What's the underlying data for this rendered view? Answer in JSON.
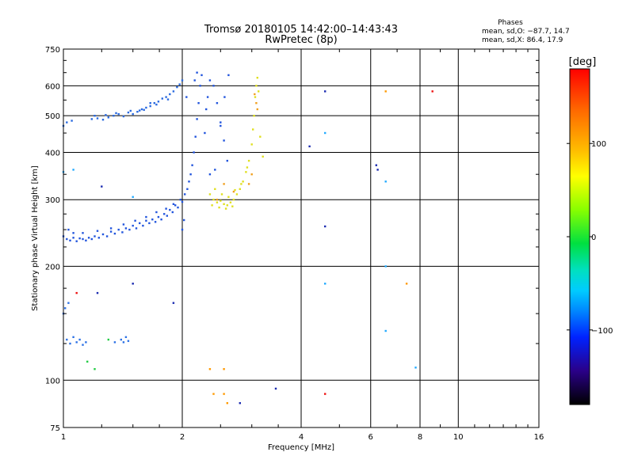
{
  "chart_data": {
    "type": "scatter",
    "title": "Tromsø 20180105 14:42:00–14:43:43",
    "subtitle": "RwPretec (8p)",
    "xlabel": "Frequency [MHz]",
    "ylabel": "Stationary phase Virtual Height [km]",
    "x_scale": "log",
    "y_scale": "log",
    "xlim": [
      1,
      16
    ],
    "ylim": [
      75,
      750
    ],
    "x_ticks": [
      1,
      2,
      4,
      6,
      8,
      10,
      16
    ],
    "x_tick_labels": [
      "1",
      "2",
      "4",
      "6",
      "8",
      "10",
      "16"
    ],
    "y_ticks": [
      75,
      100,
      200,
      300,
      400,
      500,
      600,
      750
    ],
    "y_tick_labels": [
      "75",
      "100",
      "200",
      "300",
      "400",
      "500",
      "600",
      "750"
    ],
    "grid": true,
    "phase_info": {
      "title": "Phases",
      "line1": "mean, sd,O: −87.7, 14.7",
      "line2": "mean, sd,X: 86.4, 17.9"
    },
    "colorbar": {
      "label": "[deg]",
      "range": [
        -180,
        180
      ],
      "ticks": [
        100,
        0,
        -100
      ],
      "tick_labels": [
        "100",
        "0",
        "−100"
      ]
    },
    "series": [
      {
        "mode": "O",
        "phase": -110,
        "color": "#2255dd",
        "points": [
          [
            1.0,
            240
          ],
          [
            1.02,
            236
          ],
          [
            1.04,
            234
          ],
          [
            1.06,
            238
          ],
          [
            1.08,
            233
          ],
          [
            1.1,
            237
          ],
          [
            1.12,
            236
          ],
          [
            1.14,
            234
          ],
          [
            1.16,
            238
          ],
          [
            1.18,
            236
          ],
          [
            1.2,
            240
          ],
          [
            1.23,
            238
          ],
          [
            1.26,
            243
          ],
          [
            1.29,
            240
          ],
          [
            1.32,
            247
          ],
          [
            1.35,
            244
          ],
          [
            1.38,
            250
          ],
          [
            1.41,
            246
          ],
          [
            1.44,
            252
          ],
          [
            1.47,
            250
          ],
          [
            1.5,
            256
          ],
          [
            1.53,
            252
          ],
          [
            1.56,
            260
          ],
          [
            1.59,
            256
          ],
          [
            1.62,
            264
          ],
          [
            1.65,
            260
          ],
          [
            1.68,
            266
          ],
          [
            1.71,
            262
          ],
          [
            1.74,
            270
          ],
          [
            1.77,
            266
          ],
          [
            1.8,
            275
          ],
          [
            1.83,
            272
          ],
          [
            1.86,
            282
          ],
          [
            1.89,
            278
          ],
          [
            1.92,
            290
          ],
          [
            1.95,
            286
          ],
          [
            1.98,
            300
          ],
          [
            2.0,
            296
          ],
          [
            2.03,
            310
          ],
          [
            2.06,
            320
          ],
          [
            2.08,
            335
          ],
          [
            2.1,
            350
          ],
          [
            2.12,
            370
          ],
          [
            2.14,
            400
          ],
          [
            2.16,
            440
          ],
          [
            2.18,
            490
          ],
          [
            2.2,
            540
          ],
          [
            2.22,
            600
          ],
          [
            2.24,
            640
          ],
          [
            2.0,
            250
          ],
          [
            2.02,
            265
          ],
          [
            1.03,
            250
          ],
          [
            1.06,
            245
          ],
          [
            1.12,
            245
          ],
          [
            1.22,
            248
          ],
          [
            1.32,
            252
          ],
          [
            1.42,
            258
          ],
          [
            1.52,
            264
          ],
          [
            1.62,
            270
          ],
          [
            1.72,
            278
          ],
          [
            1.82,
            284
          ],
          [
            1.9,
            292
          ],
          [
            2.28,
            450
          ],
          [
            2.3,
            520
          ],
          [
            2.32,
            560
          ],
          [
            2.35,
            620
          ],
          [
            2.4,
            600
          ],
          [
            2.45,
            540
          ],
          [
            2.5,
            480
          ],
          [
            2.55,
            430
          ],
          [
            2.6,
            380
          ],
          [
            2.35,
            350
          ],
          [
            2.42,
            360
          ],
          [
            2.5,
            470
          ],
          [
            2.56,
            560
          ],
          [
            2.62,
            640
          ],
          [
            2.15,
            620
          ],
          [
            2.18,
            650
          ],
          [
            2.05,
            560
          ]
        ]
      },
      {
        "mode": "O-upper",
        "phase": -105,
        "color": "#2a6ae0",
        "points": [
          [
            1.18,
            490
          ],
          [
            1.22,
            492
          ],
          [
            1.26,
            488
          ],
          [
            1.3,
            495
          ],
          [
            1.34,
            500
          ],
          [
            1.38,
            505
          ],
          [
            1.42,
            498
          ],
          [
            1.46,
            510
          ],
          [
            1.5,
            505
          ],
          [
            1.54,
            512
          ],
          [
            1.58,
            520
          ],
          [
            1.62,
            525
          ],
          [
            1.66,
            530
          ],
          [
            1.7,
            540
          ],
          [
            1.74,
            545
          ],
          [
            1.78,
            555
          ],
          [
            1.82,
            560
          ],
          [
            1.86,
            570
          ],
          [
            1.9,
            580
          ],
          [
            1.94,
            595
          ],
          [
            1.97,
            605
          ],
          [
            2.0,
            620
          ],
          [
            1.2,
            500
          ],
          [
            1.28,
            502
          ],
          [
            1.36,
            508
          ],
          [
            1.48,
            515
          ],
          [
            1.6,
            518
          ],
          [
            1.72,
            535
          ],
          [
            1.84,
            552
          ],
          [
            1.66,
            540
          ],
          [
            1.56,
            516
          ],
          [
            1.0,
            470
          ],
          [
            1.02,
            480
          ],
          [
            1.05,
            485
          ]
        ]
      },
      {
        "mode": "X",
        "phase": 95,
        "color": "#e0e020",
        "points": [
          [
            2.35,
            310
          ],
          [
            2.4,
            300
          ],
          [
            2.45,
            295
          ],
          [
            2.5,
            298
          ],
          [
            2.55,
            292
          ],
          [
            2.6,
            290
          ],
          [
            2.65,
            295
          ],
          [
            2.7,
            300
          ],
          [
            2.75,
            310
          ],
          [
            2.8,
            320
          ],
          [
            2.85,
            335
          ],
          [
            2.9,
            355
          ],
          [
            2.95,
            380
          ],
          [
            3.0,
            420
          ],
          [
            3.02,
            460
          ],
          [
            3.04,
            500
          ],
          [
            3.06,
            560
          ],
          [
            3.08,
            600
          ],
          [
            3.1,
            630
          ],
          [
            2.42,
            320
          ],
          [
            2.52,
            310
          ],
          [
            2.62,
            305
          ],
          [
            2.72,
            318
          ],
          [
            2.82,
            330
          ],
          [
            2.92,
            365
          ],
          [
            3.12,
            580
          ],
          [
            3.15,
            440
          ],
          [
            2.38,
            290
          ],
          [
            2.48,
            286
          ],
          [
            2.58,
            284
          ],
          [
            2.68,
            288
          ],
          [
            3.2,
            390
          ]
        ]
      },
      {
        "mode": "X-warm",
        "phase": 140,
        "color": "#f0a020",
        "points": [
          [
            3.05,
            570
          ],
          [
            3.08,
            540
          ],
          [
            3.1,
            520
          ],
          [
            2.95,
            330
          ],
          [
            3.0,
            350
          ],
          [
            2.7,
            315
          ],
          [
            2.55,
            330
          ],
          [
            2.45,
            300
          ]
        ]
      },
      {
        "mode": "low-layer",
        "phase": -100,
        "color": "#2d72e6",
        "points": [
          [
            1.02,
            128
          ],
          [
            1.04,
            125
          ],
          [
            1.06,
            130
          ],
          [
            1.08,
            126
          ],
          [
            1.1,
            128
          ],
          [
            1.12,
            124
          ],
          [
            1.14,
            126
          ],
          [
            1.4,
            128
          ],
          [
            1.42,
            126
          ],
          [
            1.44,
            130
          ],
          [
            1.46,
            127
          ],
          [
            1.35,
            126
          ],
          [
            1.0,
            150
          ],
          [
            1.01,
            155
          ],
          [
            1.03,
            160
          ]
        ]
      },
      {
        "mode": "scatter",
        "phase": -60,
        "color": "#22aaff",
        "points": [
          [
            1.06,
            360
          ],
          [
            1.5,
            305
          ],
          [
            4.6,
            450
          ],
          [
            6.55,
            335
          ],
          [
            6.55,
            200
          ],
          [
            4.6,
            180
          ],
          [
            7.8,
            108
          ],
          [
            6.55,
            135
          ],
          [
            1.0,
            355
          ]
        ]
      },
      {
        "mode": "scatter-red",
        "phase": 175,
        "color": "#ee1111",
        "points": [
          [
            1.08,
            170
          ],
          [
            4.6,
            92
          ],
          [
            8.6,
            580
          ]
        ]
      },
      {
        "mode": "scatter-orange",
        "phase": 150,
        "color": "#ff9900",
        "points": [
          [
            6.55,
            580
          ],
          [
            7.4,
            180
          ],
          [
            2.4,
            92
          ],
          [
            2.55,
            92
          ],
          [
            2.6,
            87
          ],
          [
            2.35,
            107
          ],
          [
            2.55,
            107
          ]
        ]
      },
      {
        "mode": "scatter-green",
        "phase": 30,
        "color": "#22cc44",
        "points": [
          [
            1.15,
            112
          ],
          [
            1.2,
            107
          ],
          [
            1.3,
            128
          ]
        ]
      },
      {
        "mode": "scatter-dark",
        "phase": -120,
        "color": "#1a2ab0",
        "points": [
          [
            1.5,
            180
          ],
          [
            1.9,
            160
          ],
          [
            4.2,
            415
          ],
          [
            6.2,
            370
          ],
          [
            6.25,
            360
          ],
          [
            4.6,
            580
          ],
          [
            3.45,
            95
          ],
          [
            2.8,
            87
          ],
          [
            1.25,
            325
          ],
          [
            4.6,
            255
          ],
          [
            1.22,
            170
          ]
        ]
      }
    ]
  }
}
